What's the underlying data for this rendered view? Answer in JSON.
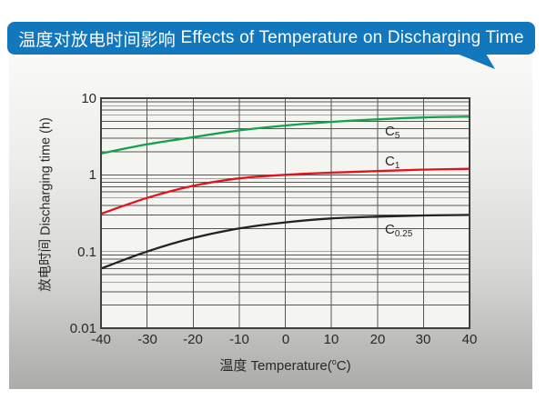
{
  "header": {
    "title_zh": "温度对放电时间影响",
    "title_en": "Effects of Temperature on Discharging Time",
    "bg_color": "#1377be",
    "text_color": "#ffffff"
  },
  "chart_data": {
    "type": "line",
    "x": [
      -40,
      -30,
      -20,
      -10,
      0,
      10,
      20,
      30,
      40
    ],
    "series": [
      {
        "name": "C5",
        "label_main": "C",
        "label_sub": "5",
        "color": "#15a24d",
        "values": [
          1.9,
          2.5,
          3.1,
          3.8,
          4.4,
          4.9,
          5.3,
          5.6,
          5.75
        ]
      },
      {
        "name": "C1",
        "label_main": "C",
        "label_sub": "1",
        "color": "#e2131b",
        "values": [
          0.31,
          0.5,
          0.72,
          0.9,
          1.0,
          1.07,
          1.12,
          1.17,
          1.2
        ]
      },
      {
        "name": "C0.25",
        "label_main": "C",
        "label_sub": "0.25",
        "color": "#262223",
        "values": [
          0.06,
          0.1,
          0.15,
          0.2,
          0.24,
          0.27,
          0.285,
          0.295,
          0.3
        ]
      }
    ],
    "x_ticks": [
      {
        "label": "-40",
        "value": -40
      },
      {
        "label": "-30",
        "value": -30
      },
      {
        "label": "-20",
        "value": -20
      },
      {
        "label": "-10",
        "value": -10
      },
      {
        "label": "0",
        "value": 0
      },
      {
        "label": "10",
        "value": 10
      },
      {
        "label": "20",
        "value": 20
      },
      {
        "label": "30",
        "value": 30
      },
      {
        "label": "40",
        "value": 40
      }
    ],
    "y_ticks": [
      {
        "label": "10",
        "value": 10
      },
      {
        "label": "1",
        "value": 1
      },
      {
        "label": "0.1",
        "value": 0.1
      },
      {
        "label": "0.01",
        "value": 0.01
      }
    ],
    "xlabel": {
      "prefix": "温度  Temperature(",
      "sup": "o",
      "suffix": "C)"
    },
    "ylabel": "放电时间 Discharging time (h)",
    "xlim": [
      -40,
      40
    ],
    "ylim": [
      0.01,
      10
    ],
    "y_scale": "log",
    "grid": true,
    "legend_position": "inline-labels",
    "colors": {
      "grid": "#565656",
      "plot_border": "#3f3f3f",
      "plot_bg": "#f4f4f1",
      "text": "#2b2727"
    }
  }
}
